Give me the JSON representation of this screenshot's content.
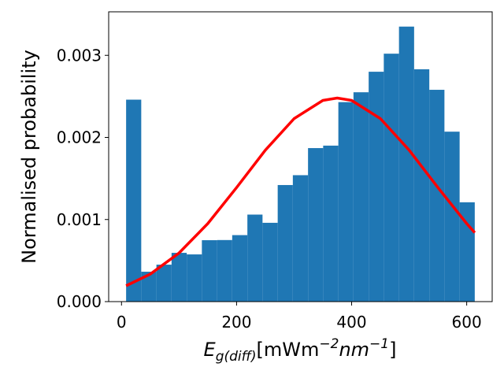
{
  "chart_data": {
    "type": "histogram",
    "x_label_parts": [
      "E",
      "g(diff)",
      "[mWm",
      "−2",
      "nm",
      "−1",
      "]"
    ],
    "y_label": "Normalised probability",
    "bins": [
      8,
      34.3,
      60.7,
      87.0,
      113.4,
      139.7,
      166.1,
      192.4,
      218.8,
      245.1,
      271.5,
      297.8,
      324.2,
      350.5,
      376.9,
      403.2,
      429.6,
      455.9,
      482.3,
      508.6,
      535.0,
      561.3,
      587.7,
      614
    ],
    "values": [
      0.00246,
      0.000364,
      0.00045,
      0.000594,
      0.000575,
      0.000748,
      0.00075,
      0.00081,
      0.00106,
      0.00096,
      0.00142,
      0.00154,
      0.00187,
      0.0019,
      0.00243,
      0.00255,
      0.0028,
      0.00302,
      0.00335,
      0.00283,
      0.00258,
      0.00207,
      0.00121
    ],
    "color": "#1f77b4",
    "overlay": {
      "type": "line",
      "color": "#ff0000",
      "x": [
        8,
        50,
        100,
        150,
        200,
        250,
        300,
        350,
        375,
        400,
        450,
        500,
        550,
        600,
        614
      ],
      "values": [
        0.000193,
        0.000335,
        0.000592,
        0.000951,
        0.001389,
        0.001845,
        0.002229,
        0.002451,
        0.00248,
        0.002451,
        0.002229,
        0.001845,
        0.001389,
        0.000951,
        0.00084
      ]
    },
    "xlim": [
      -22.3,
      644.3
    ],
    "ylim": [
      0,
      0.00353
    ],
    "xticks": [
      0,
      200,
      400,
      600
    ],
    "yticks": [
      {
        "value": 0,
        "label": "0.000"
      },
      0.001,
      0.002,
      0.003
    ]
  }
}
